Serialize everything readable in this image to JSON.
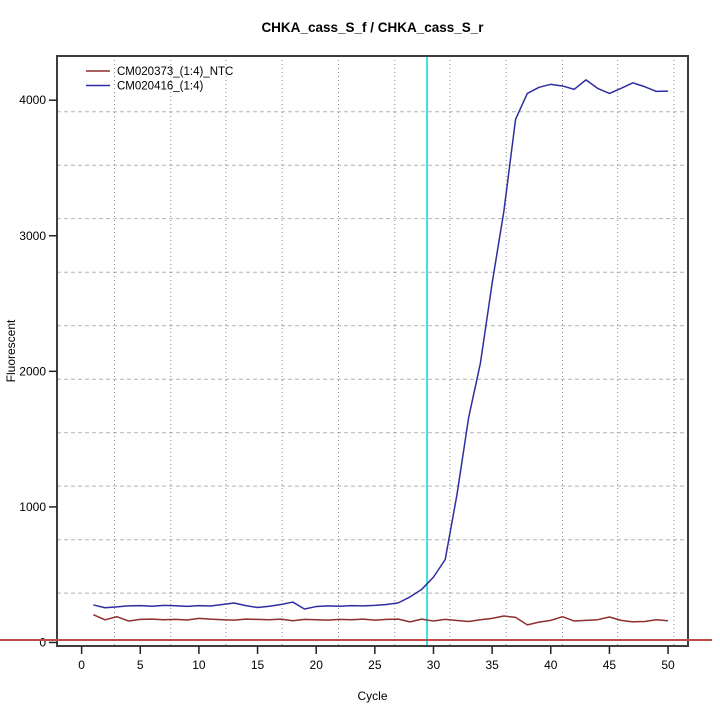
{
  "chart_data": {
    "type": "line",
    "title": "CHKA_cass_S_f / CHKA_cass_S_r",
    "xlabel": "Cycle",
    "ylabel": "Fluorescent",
    "xlim": [
      -2.1,
      51.7
    ],
    "ylim": [
      -26,
      4326
    ],
    "x_ticks": [
      0,
      5,
      10,
      15,
      20,
      25,
      30,
      35,
      40,
      45,
      50
    ],
    "y_ticks": [
      0,
      1000,
      2000,
      3000,
      4000
    ],
    "grid": {
      "vertical_dotted_at_x": [
        2.8,
        7.6,
        12.3,
        17.1,
        21.9,
        26.7,
        31.4,
        36.2,
        41.0,
        45.7,
        50.5
      ],
      "horizontal_dashed_at_y": [
        364,
        758,
        1153,
        1547,
        1942,
        2336,
        2731,
        3126,
        3520,
        3915
      ],
      "vertical_color": "#8a8a8a",
      "horizontal_color": "#b4b4b4"
    },
    "legend_position": "top-left",
    "x": [
      1,
      2,
      3,
      4,
      5,
      6,
      7,
      8,
      9,
      10,
      11,
      12,
      13,
      14,
      15,
      16,
      17,
      18,
      19,
      20,
      21,
      22,
      23,
      24,
      25,
      26,
      27,
      28,
      29,
      30,
      31,
      32,
      33,
      34,
      35,
      36,
      37,
      38,
      39,
      40,
      41,
      42,
      43,
      44,
      45,
      46,
      47,
      48,
      49,
      50
    ],
    "series": [
      {
        "name": "CM020373_(1:4)_NTC",
        "color": "#8f2f2f",
        "values": [
          205,
          167,
          190,
          158,
          170,
          172,
          168,
          170,
          166,
          178,
          172,
          168,
          165,
          172,
          170,
          168,
          172,
          160,
          170,
          168,
          165,
          170,
          168,
          172,
          165,
          170,
          172,
          152,
          172,
          158,
          170,
          162,
          155,
          168,
          178,
          195,
          185,
          130,
          150,
          163,
          190,
          158,
          163,
          168,
          188,
          163,
          152,
          155,
          168,
          160
        ]
      },
      {
        "name": "CM020416_(1:4)",
        "color": "#2e2ea2",
        "values": [
          277,
          256,
          263,
          270,
          272,
          267,
          274,
          271,
          266,
          272,
          269,
          280,
          291,
          272,
          258,
          267,
          280,
          298,
          247,
          265,
          270,
          267,
          272,
          270,
          274,
          280,
          292,
          336,
          392,
          482,
          612,
          1090,
          1660,
          2060,
          2650,
          3180,
          3860,
          4050,
          4095,
          4117,
          4105,
          4080,
          4150,
          4087,
          4050,
          4088,
          4128,
          4100,
          4065,
          4067
        ]
      }
    ],
    "crossing_line": {
      "x_value": 29.45,
      "color": "#00dede"
    },
    "threshold_line": {
      "y_value": 18,
      "color": "#c14a4a"
    },
    "box_color": "#3d3d3d"
  }
}
